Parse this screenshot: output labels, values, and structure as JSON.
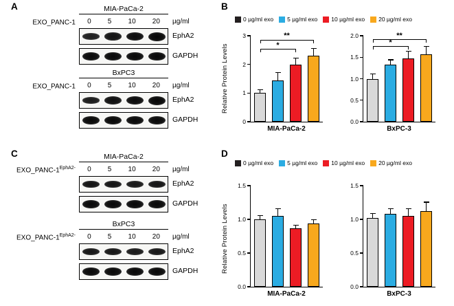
{
  "bar_colors": [
    "#d9d9d9",
    "#2bace2",
    "#ec1c24",
    "#f8a81d"
  ],
  "legend_items": [
    {
      "label": "0 µg/ml exo",
      "color": "#231f20"
    },
    {
      "label": "5 µg/ml exo",
      "color": "#2bace2"
    },
    {
      "label": "10 µg/ml exo",
      "color": "#ec1c24"
    },
    {
      "label": "20 µg/ml exo",
      "color": "#f8a81d"
    }
  ],
  "panels": {
    "A": {
      "label": "A",
      "groups": [
        {
          "cell_line": "MIA-PaCa-2",
          "treatment": "EXO_PANC-1",
          "treatment_sup": "",
          "doses": [
            "0",
            "5",
            "10",
            "20"
          ],
          "dose_unit": "µg/ml",
          "blots": [
            {
              "target": "EphA2",
              "band_weights": [
                0.45,
                0.75,
                0.9,
                1
              ]
            },
            {
              "target": "GAPDH",
              "band_weights": [
                0.95,
                0.95,
                0.95,
                0.95
              ]
            }
          ]
        },
        {
          "cell_line": "BxPC3",
          "treatment": "EXO_PANC-1",
          "treatment_sup": "",
          "doses": [
            "0",
            "5",
            "10",
            "20"
          ],
          "dose_unit": "µg/ml",
          "blots": [
            {
              "target": "EphA2",
              "band_weights": [
                0.5,
                0.8,
                0.9,
                1
              ]
            },
            {
              "target": "GAPDH",
              "band_weights": [
                0.95,
                0.95,
                0.95,
                0.95
              ]
            }
          ]
        }
      ]
    },
    "B": {
      "label": "B",
      "ylabel": "Relative Protein Levels"
    },
    "C": {
      "label": "C",
      "groups": [
        {
          "cell_line": "MIA-PaCa-2",
          "treatment": "EXO_PANC-1",
          "treatment_sup": "EphA2-",
          "doses": [
            "0",
            "5",
            "10",
            "20"
          ],
          "dose_unit": "µg/ml",
          "blots": [
            {
              "target": "EphA2",
              "band_weights": [
                0.7,
                0.65,
                0.6,
                0.65
              ]
            },
            {
              "target": "GAPDH",
              "band_weights": [
                0.95,
                0.95,
                0.95,
                0.95
              ]
            }
          ]
        },
        {
          "cell_line": "BxPC3",
          "treatment": "EXO_PANC-1",
          "treatment_sup": "EphA2-",
          "doses": [
            "0",
            "5",
            "10",
            "20"
          ],
          "dose_unit": "µg/ml",
          "blots": [
            {
              "target": "EphA2",
              "band_weights": [
                0.6,
                0.6,
                0.55,
                0.6
              ]
            },
            {
              "target": "GAPDH",
              "band_weights": [
                0.95,
                0.95,
                0.95,
                0.95
              ]
            }
          ]
        }
      ]
    },
    "D": {
      "label": "D",
      "ylabel": "Relative Protein Levels"
    }
  },
  "chart_data": [
    {
      "panel": "B",
      "type": "bar",
      "xlabel": "MIA-PaCa-2",
      "ylabel": "Relative Protein Levels",
      "categories": [
        "0 µg/ml exo",
        "5 µg/ml exo",
        "10 µg/ml exo",
        "20 µg/ml exo"
      ],
      "values": [
        1.0,
        1.45,
        2.0,
        2.3
      ],
      "errors": [
        0.1,
        0.25,
        0.2,
        0.25
      ],
      "ylim": [
        0,
        3
      ],
      "yticks": [
        0,
        1,
        2,
        3
      ],
      "ytick_labels": [
        "0",
        "1",
        "2",
        "3"
      ],
      "significance": [
        {
          "from": 0,
          "to": 2,
          "label": "*",
          "y": 2.52
        },
        {
          "from": 0,
          "to": 3,
          "label": "**",
          "y": 2.84
        }
      ]
    },
    {
      "panel": "B",
      "type": "bar",
      "xlabel": "BxPC-3",
      "ylabel": "Relative Protein Levels",
      "categories": [
        "0 µg/ml exo",
        "5 µg/ml exo",
        "10 µg/ml exo",
        "20 µg/ml exo"
      ],
      "values": [
        1.0,
        1.33,
        1.48,
        1.57
      ],
      "errors": [
        0.1,
        0.1,
        0.15,
        0.17
      ],
      "ylim": [
        0,
        2
      ],
      "yticks": [
        0,
        0.5,
        1,
        1.5,
        2
      ],
      "ytick_labels": [
        "0.0",
        "0.5",
        "1.0",
        "1.5",
        "2.0"
      ],
      "significance": [
        {
          "from": 0,
          "to": 2,
          "label": "*",
          "y": 1.74
        },
        {
          "from": 0,
          "to": 3,
          "label": "**",
          "y": 1.9
        }
      ]
    },
    {
      "panel": "D",
      "type": "bar",
      "xlabel": "MIA-PaCa-2",
      "ylabel": "Relative Protein Levels",
      "categories": [
        "0 µg/ml exo",
        "5 µg/ml exo",
        "10 µg/ml exo",
        "20 µg/ml exo"
      ],
      "values": [
        1.0,
        1.05,
        0.87,
        0.94
      ],
      "errors": [
        0.05,
        0.1,
        0.04,
        0.05
      ],
      "ylim": [
        0,
        1.5
      ],
      "yticks": [
        0,
        0.5,
        1,
        1.5
      ],
      "ytick_labels": [
        "0.0",
        "0.5",
        "1.0",
        "1.5"
      ],
      "significance": []
    },
    {
      "panel": "D",
      "type": "bar",
      "xlabel": "BxPC-3",
      "ylabel": "Relative Protein Levels",
      "categories": [
        "0 µg/ml exo",
        "5 µg/ml exo",
        "10 µg/ml exo",
        "20 µg/ml exo"
      ],
      "values": [
        1.02,
        1.08,
        1.05,
        1.12
      ],
      "errors": [
        0.06,
        0.07,
        0.1,
        0.13
      ],
      "ylim": [
        0,
        1.5
      ],
      "yticks": [
        0,
        0.5,
        1,
        1.5
      ],
      "ytick_labels": [
        "0.0",
        "0.5",
        "1.0",
        "1.5"
      ],
      "significance": []
    }
  ]
}
